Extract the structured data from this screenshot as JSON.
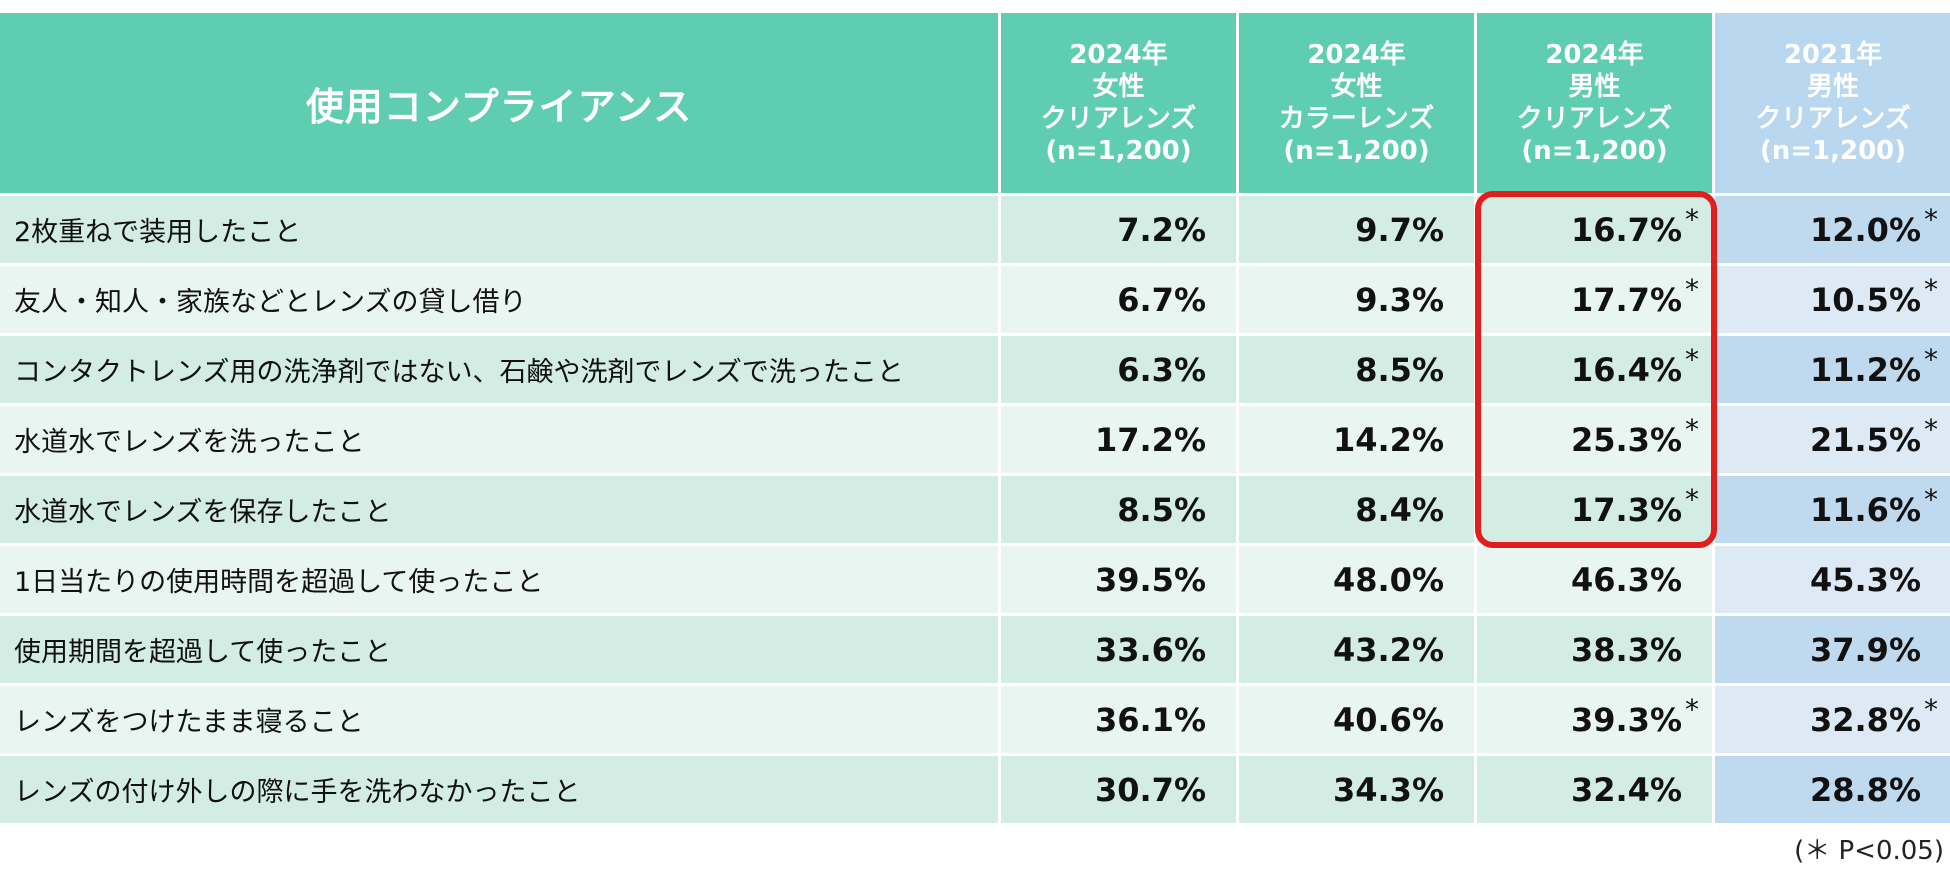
{
  "chart_data": {
    "type": "table",
    "title": "使用コンプライアンス",
    "columns": [
      {
        "lines": [
          "2024年",
          "女性",
          "クリアレンズ",
          "(n=1,200)"
        ],
        "color": "#5ecdb1"
      },
      {
        "lines": [
          "2024年",
          "女性",
          "カラーレンズ",
          "(n=1,200)"
        ],
        "color": "#5ecdb1"
      },
      {
        "lines": [
          "2024年",
          "男性",
          "クリアレンズ",
          "(n=1,200)"
        ],
        "color": "#5ecdb1"
      },
      {
        "lines": [
          "2021年",
          "男性",
          "クリアレンズ",
          "(n=1,200)"
        ],
        "color": "#b9d7ee"
      }
    ],
    "rows": [
      {
        "label": "2枚重ねで装用したこと",
        "values": [
          "7.2%",
          "9.7%",
          "16.7%",
          "12.0%"
        ],
        "sig": [
          false,
          false,
          true,
          true
        ]
      },
      {
        "label": "友人・知人・家族などとレンズの貸し借り",
        "values": [
          "6.7%",
          "9.3%",
          "17.7%",
          "10.5%"
        ],
        "sig": [
          false,
          false,
          true,
          true
        ]
      },
      {
        "label": "コンタクトレンズ用の洗浄剤ではない、石鹸や洗剤でレンズで洗ったこと",
        "values": [
          "6.3%",
          "8.5%",
          "16.4%",
          "11.2%"
        ],
        "sig": [
          false,
          false,
          true,
          true
        ]
      },
      {
        "label": "水道水でレンズを洗ったこと",
        "values": [
          "17.2%",
          "14.2%",
          "25.3%",
          "21.5%"
        ],
        "sig": [
          false,
          false,
          true,
          true
        ]
      },
      {
        "label": "水道水でレンズを保存したこと",
        "values": [
          "8.5%",
          "8.4%",
          "17.3%",
          "11.6%"
        ],
        "sig": [
          false,
          false,
          true,
          true
        ]
      },
      {
        "label": "1日当たりの使用時間を超過して使ったこと",
        "values": [
          "39.5%",
          "48.0%",
          "46.3%",
          "45.3%"
        ],
        "sig": [
          false,
          false,
          false,
          false
        ]
      },
      {
        "label": "使用期間を超過して使ったこと",
        "values": [
          "33.6%",
          "43.2%",
          "38.3%",
          "37.9%"
        ],
        "sig": [
          false,
          false,
          false,
          false
        ]
      },
      {
        "label": "レンズをつけたまま寝ること",
        "values": [
          "36.1%",
          "40.6%",
          "39.3%",
          "32.8%"
        ],
        "sig": [
          false,
          false,
          true,
          true
        ]
      },
      {
        "label": "レンズの付け外しの際に手を洗わなかったこと",
        "values": [
          "30.7%",
          "34.3%",
          "32.4%",
          "28.8%"
        ],
        "sig": [
          false,
          false,
          false,
          false
        ]
      }
    ],
    "significance_mark": "*",
    "footnote": "(＊ P<0.05)",
    "highlight_color": "#e01e1e"
  }
}
